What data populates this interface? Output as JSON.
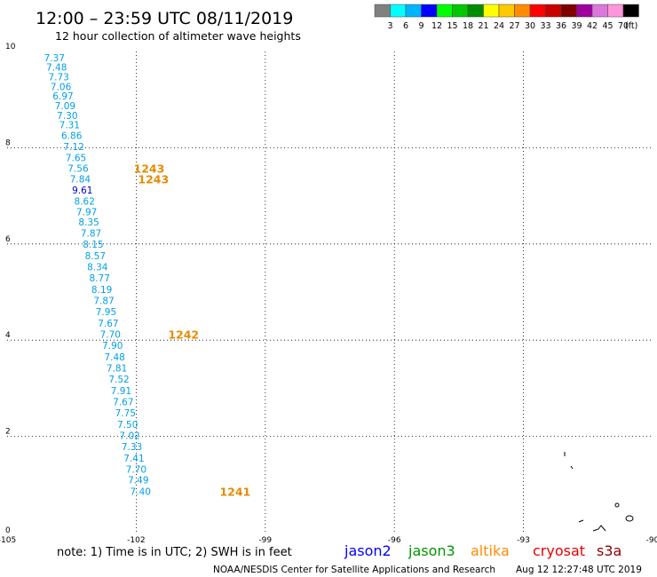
{
  "header": {
    "title": "12:00 – 23:59 UTC 08/11/2019",
    "subtitle": "12 hour collection of altimeter wave heights"
  },
  "colorbar": {
    "colors": [
      "#808080",
      "#00ffff",
      "#00b4ff",
      "#0000ff",
      "#00ff00",
      "#00c800",
      "#008c00",
      "#ffff00",
      "#ffc800",
      "#ff8c00",
      "#ff0000",
      "#c80000",
      "#7f0000",
      "#a000a0",
      "#dc78dc",
      "#ff96dc",
      "#000000"
    ],
    "labels": [
      "3",
      "6",
      "9",
      "12",
      "15",
      "18",
      "21",
      "24",
      "27",
      "30",
      "33",
      "36",
      "39",
      "42",
      "45",
      "70",
      "(ft)"
    ]
  },
  "footer": {
    "note": "note:  1) Time is in UTC;  2) SWH is in feet",
    "credit": "NOAA/NESDIS Center for Satellite Applications and Research",
    "timestamp": "Aug 12 12:27:48 UTC 2019"
  },
  "legend": [
    {
      "name": "jason2",
      "color": "#0000ff"
    },
    {
      "name": "jason3",
      "color": "#009600"
    },
    {
      "name": "altika",
      "color": "#ff8c00"
    },
    {
      "name": "cryosat",
      "color": "#e60000"
    },
    {
      "name": "s3a",
      "color": "#8b0000"
    }
  ],
  "chart_data": {
    "type": "scatter",
    "xlim": [
      -105,
      -90
    ],
    "ylim": [
      0,
      10
    ],
    "xticks": [
      "-105",
      "-102",
      "-99",
      "-96",
      "-93",
      "-90"
    ],
    "yticks": [
      "0",
      "2",
      "4",
      "6",
      "8",
      "10"
    ],
    "grid": true,
    "points": [
      {
        "lon": -103.9,
        "lat": 9.8,
        "swh": "7.37",
        "color": "#00a0e6"
      },
      {
        "lon": -103.85,
        "lat": 9.6,
        "swh": "7.48",
        "color": "#00a0e6"
      },
      {
        "lon": -103.8,
        "lat": 9.4,
        "swh": "7.73",
        "color": "#00a0e6"
      },
      {
        "lon": -103.75,
        "lat": 9.2,
        "swh": "7.06",
        "color": "#00a0e6"
      },
      {
        "lon": -103.7,
        "lat": 9.0,
        "swh": "6.97",
        "color": "#00a0e6"
      },
      {
        "lon": -103.65,
        "lat": 8.8,
        "swh": "7.09",
        "color": "#00a0e6"
      },
      {
        "lon": -103.6,
        "lat": 8.6,
        "swh": "7.30",
        "color": "#00a0e6"
      },
      {
        "lon": -103.55,
        "lat": 8.4,
        "swh": "7.31",
        "color": "#00a0e6"
      },
      {
        "lon": -103.5,
        "lat": 8.18,
        "swh": "6.86",
        "color": "#00a0e6"
      },
      {
        "lon": -103.45,
        "lat": 7.95,
        "swh": "7.12",
        "color": "#00a0e6"
      },
      {
        "lon": -103.4,
        "lat": 7.72,
        "swh": "7.65",
        "color": "#00a0e6"
      },
      {
        "lon": -103.35,
        "lat": 7.5,
        "swh": "7.56",
        "color": "#00a0e6"
      },
      {
        "lon": -103.3,
        "lat": 7.28,
        "swh": "7.84",
        "color": "#00a0e6"
      },
      {
        "lon": -103.25,
        "lat": 7.05,
        "swh": "9.61",
        "color": "#0000cc"
      },
      {
        "lon": -103.2,
        "lat": 6.82,
        "swh": "8.62",
        "color": "#00a0e6"
      },
      {
        "lon": -103.15,
        "lat": 6.6,
        "swh": "7.97",
        "color": "#00a0e6"
      },
      {
        "lon": -103.1,
        "lat": 6.38,
        "swh": "8.35",
        "color": "#00a0e6"
      },
      {
        "lon": -103.05,
        "lat": 6.15,
        "swh": "7.87",
        "color": "#00a0e6"
      },
      {
        "lon": -103.0,
        "lat": 5.92,
        "swh": "8.15",
        "color": "#00a0e6"
      },
      {
        "lon": -102.95,
        "lat": 5.68,
        "swh": "8.57",
        "color": "#00a0e6"
      },
      {
        "lon": -102.9,
        "lat": 5.45,
        "swh": "8.34",
        "color": "#00a0e6"
      },
      {
        "lon": -102.85,
        "lat": 5.22,
        "swh": "8.77",
        "color": "#00a0e6"
      },
      {
        "lon": -102.8,
        "lat": 4.98,
        "swh": "8.19",
        "color": "#00a0e6"
      },
      {
        "lon": -102.75,
        "lat": 4.75,
        "swh": "7.87",
        "color": "#00a0e6"
      },
      {
        "lon": -102.7,
        "lat": 4.52,
        "swh": "7.95",
        "color": "#00a0e6"
      },
      {
        "lon": -102.65,
        "lat": 4.28,
        "swh": "7.67",
        "color": "#00a0e6"
      },
      {
        "lon": -102.6,
        "lat": 4.05,
        "swh": "7.70",
        "color": "#00a0e6"
      },
      {
        "lon": -102.55,
        "lat": 3.82,
        "swh": "7.90",
        "color": "#00a0e6"
      },
      {
        "lon": -102.5,
        "lat": 3.58,
        "swh": "7.48",
        "color": "#00a0e6"
      },
      {
        "lon": -102.45,
        "lat": 3.35,
        "swh": "7.81",
        "color": "#00a0e6"
      },
      {
        "lon": -102.4,
        "lat": 3.12,
        "swh": "7.52",
        "color": "#00a0e6"
      },
      {
        "lon": -102.35,
        "lat": 2.88,
        "swh": "7.91",
        "color": "#00a0e6"
      },
      {
        "lon": -102.3,
        "lat": 2.65,
        "swh": "7.67",
        "color": "#00a0e6"
      },
      {
        "lon": -102.25,
        "lat": 2.42,
        "swh": "7.75",
        "color": "#00a0e6"
      },
      {
        "lon": -102.2,
        "lat": 2.18,
        "swh": "7.50",
        "color": "#00a0e6"
      },
      {
        "lon": -102.15,
        "lat": 1.95,
        "swh": "7.02",
        "color": "#00a0e6"
      },
      {
        "lon": -102.1,
        "lat": 1.72,
        "swh": "7.33",
        "color": "#00a0e6"
      },
      {
        "lon": -102.05,
        "lat": 1.48,
        "swh": "7.41",
        "color": "#00a0e6"
      },
      {
        "lon": -102.0,
        "lat": 1.25,
        "swh": "7.70",
        "color": "#00a0e6"
      },
      {
        "lon": -101.95,
        "lat": 1.02,
        "swh": "7.49",
        "color": "#00a0e6"
      },
      {
        "lon": -101.9,
        "lat": 0.78,
        "swh": "7.40",
        "color": "#00a0e6"
      }
    ],
    "time_labels": [
      {
        "lon": -101.7,
        "lat": 7.5,
        "text": "1243",
        "color": "#e68c00"
      },
      {
        "lon": -101.6,
        "lat": 7.28,
        "text": "1243",
        "color": "#e68c00"
      },
      {
        "lon": -100.9,
        "lat": 4.05,
        "text": "1242",
        "color": "#e68c00"
      },
      {
        "lon": -99.7,
        "lat": 0.78,
        "text": "1241",
        "color": "#e68c00"
      }
    ]
  }
}
